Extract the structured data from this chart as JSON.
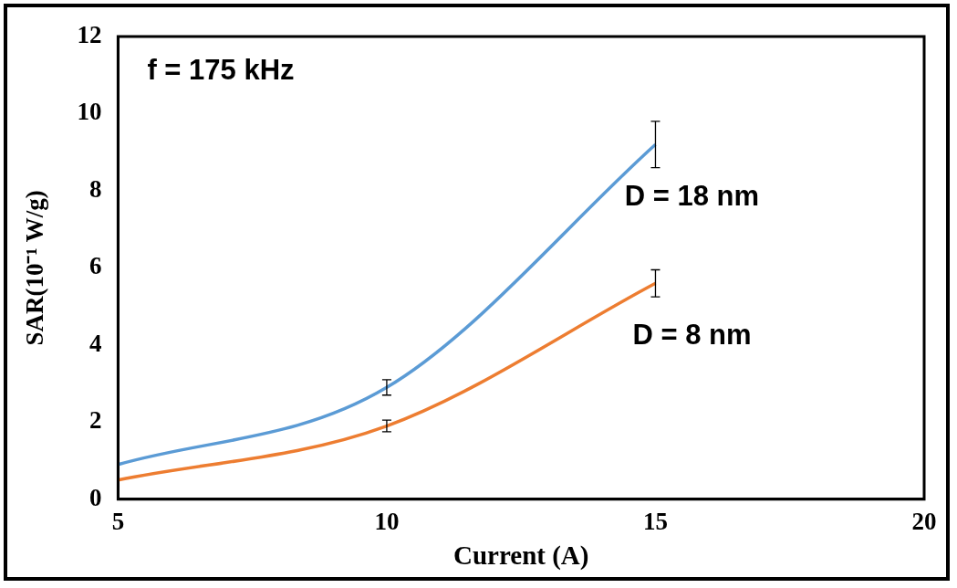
{
  "chart_data": {
    "type": "line",
    "xlabel": "Current (A)",
    "ylabel": "SAR(10⁻¹ W/g)",
    "annotations": [
      "f = 175 kHz"
    ],
    "x": [
      5,
      10,
      15
    ],
    "series": [
      {
        "name": "D = 18 nm",
        "color": "#5b9bd5",
        "values": [
          0.9,
          2.9,
          9.2
        ],
        "errors": [
          null,
          0.2,
          0.6
        ]
      },
      {
        "name": "D = 8 nm",
        "color": "#ed7d31",
        "values": [
          0.5,
          1.9,
          5.6
        ],
        "errors": [
          null,
          0.15,
          0.35
        ]
      }
    ],
    "xlim": [
      5,
      20
    ],
    "xticks": [
      5,
      10,
      15,
      20
    ],
    "ylim": [
      0,
      12
    ],
    "yticks": [
      0,
      2,
      4,
      6,
      8,
      10,
      12
    ],
    "grid": false,
    "legend": false,
    "marker": "none",
    "line_style": "solid"
  }
}
